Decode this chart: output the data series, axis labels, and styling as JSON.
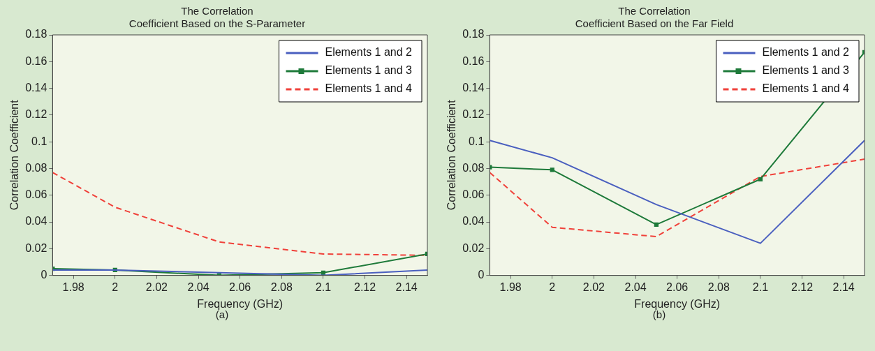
{
  "chart_data": [
    {
      "type": "line",
      "title": "The Correlation\nCoefficient Based on the S-Parameter",
      "xlabel": "Frequency (GHz)",
      "ylabel": "Correlation Coefficient",
      "x": [
        1.97,
        2.0,
        2.05,
        2.1,
        2.15
      ],
      "xlim": [
        1.97,
        2.15
      ],
      "xticks": [
        1.98,
        2,
        2.02,
        2.04,
        2.06,
        2.08,
        2.1,
        2.12,
        2.14
      ],
      "ylim": [
        0,
        0.18
      ],
      "yticks": [
        0,
        0.02,
        0.04,
        0.06,
        0.08,
        0.1,
        0.12,
        0.14,
        0.16,
        0.18
      ],
      "grid": false,
      "legend": "top right",
      "annotations": [
        "(a)"
      ],
      "series": [
        {
          "name": "Elements 1 and 2",
          "color": "#4a5fbf",
          "values": [
            0.004,
            0.004,
            0.002,
            0.0,
            0.004
          ],
          "marker": "none",
          "line_style": "solid"
        },
        {
          "name": "Elements 1 and 3",
          "color": "#1e7a3a",
          "values": [
            0.005,
            0.004,
            0.0,
            0.002,
            0.016
          ],
          "marker": "square",
          "line_style": "solid"
        },
        {
          "name": "Elements 1 and 4",
          "color": "#f0413a",
          "values": [
            0.077,
            0.051,
            0.025,
            0.016,
            0.015
          ],
          "marker": "none",
          "line_style": "dashed"
        }
      ]
    },
    {
      "type": "line",
      "title": "The Correlation\nCoefficient Based on the Far Field",
      "xlabel": "Frequency (GHz)",
      "ylabel": "Correlation Coefficient",
      "x": [
        1.97,
        2.0,
        2.05,
        2.1,
        2.15
      ],
      "xlim": [
        1.97,
        2.15
      ],
      "xticks": [
        1.98,
        2,
        2.02,
        2.04,
        2.06,
        2.08,
        2.1,
        2.12,
        2.14
      ],
      "ylim": [
        0,
        0.18
      ],
      "yticks": [
        0,
        0.02,
        0.04,
        0.06,
        0.08,
        0.1,
        0.12,
        0.14,
        0.16,
        0.18
      ],
      "grid": false,
      "legend": "top right",
      "annotations": [
        "(b)"
      ],
      "series": [
        {
          "name": "Elements 1 and 2",
          "color": "#4a5fbf",
          "values": [
            0.101,
            0.088,
            0.053,
            0.024,
            0.101
          ],
          "marker": "none",
          "line_style": "solid"
        },
        {
          "name": "Elements 1 and 3",
          "color": "#1e7a3a",
          "values": [
            0.081,
            0.079,
            0.038,
            0.072,
            0.167
          ],
          "marker": "square",
          "line_style": "solid"
        },
        {
          "name": "Elements 1 and 4",
          "color": "#f0413a",
          "values": [
            0.077,
            0.036,
            0.029,
            0.074,
            0.087
          ],
          "marker": "none",
          "line_style": "dashed"
        }
      ]
    }
  ]
}
